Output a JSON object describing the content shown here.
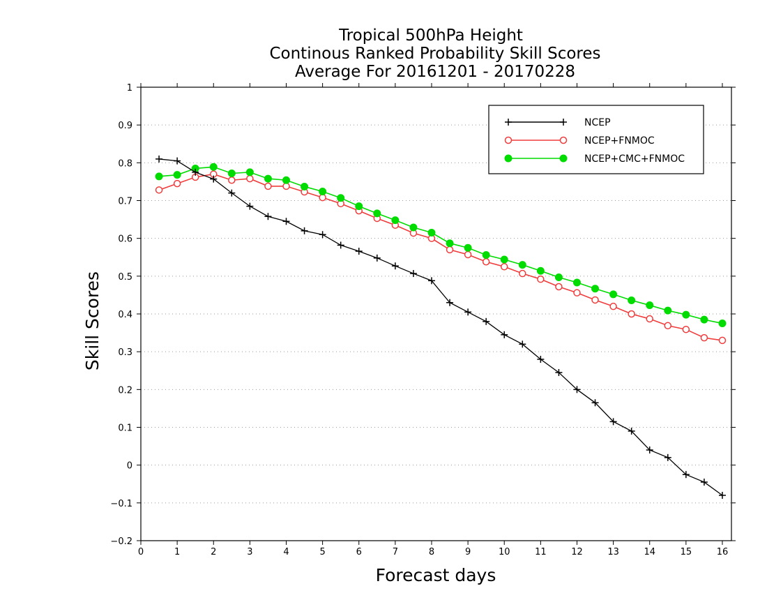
{
  "chart_data": {
    "type": "line",
    "title": [
      "Tropical 500hPa Height",
      "Continous Ranked Probability Skill Scores",
      "Average For 20161201 - 20170228"
    ],
    "xlabel": "Forecast days",
    "ylabel": "Skill Scores",
    "xlim": [
      0,
      16.25
    ],
    "ylim": [
      -0.2,
      1
    ],
    "xticks": [
      0,
      1,
      2,
      3,
      4,
      5,
      6,
      7,
      8,
      9,
      10,
      11,
      12,
      13,
      14,
      15,
      16
    ],
    "yticks": [
      -0.2,
      -0.1,
      0,
      0.1,
      0.2,
      0.3,
      0.4,
      0.5,
      0.6,
      0.7,
      0.8,
      0.9,
      1
    ],
    "ytick_labels": [
      "−0.2",
      "−0.1",
      "0",
      "0.1",
      "0.2",
      "0.3",
      "0.4",
      "0.5",
      "0.6",
      "0.7",
      "0.8",
      "0.9",
      "1"
    ],
    "grid": "horizontal dotted",
    "legend_position": "top-right",
    "x": [
      0.5,
      1,
      1.5,
      2,
      2.5,
      3,
      3.5,
      4,
      4.5,
      5,
      5.5,
      6,
      6.5,
      7,
      7.5,
      8,
      8.5,
      9,
      9.5,
      10,
      10.5,
      11,
      11.5,
      12,
      12.5,
      13,
      13.5,
      14,
      14.5,
      15,
      15.5,
      16
    ],
    "series": [
      {
        "name": "NCEP",
        "color": "#000000",
        "marker": "plus",
        "values": [
          0.81,
          0.805,
          0.775,
          0.757,
          0.72,
          0.685,
          0.658,
          0.645,
          0.62,
          0.61,
          0.582,
          0.566,
          0.548,
          0.527,
          0.507,
          0.488,
          0.43,
          0.405,
          0.38,
          0.345,
          0.32,
          0.28,
          0.245,
          0.2,
          0.165,
          0.115,
          0.09,
          0.04,
          0.02,
          -0.025,
          -0.045,
          -0.08
        ]
      },
      {
        "name": "NCEP+FNMOC",
        "color": "#f03c3c",
        "marker": "open-circle",
        "values": [
          0.728,
          0.745,
          0.762,
          0.77,
          0.754,
          0.758,
          0.738,
          0.738,
          0.723,
          0.708,
          0.692,
          0.673,
          0.653,
          0.635,
          0.614,
          0.6,
          0.57,
          0.557,
          0.538,
          0.525,
          0.507,
          0.492,
          0.472,
          0.456,
          0.437,
          0.42,
          0.4,
          0.387,
          0.369,
          0.359,
          0.337,
          0.33
        ]
      },
      {
        "name": "NCEP+CMC+FNMOC",
        "color": "#00dc00",
        "marker": "filled-circle",
        "values": [
          0.764,
          0.768,
          0.785,
          0.789,
          0.772,
          0.775,
          0.758,
          0.754,
          0.737,
          0.724,
          0.707,
          0.685,
          0.666,
          0.648,
          0.629,
          0.615,
          0.587,
          0.575,
          0.556,
          0.544,
          0.53,
          0.514,
          0.497,
          0.483,
          0.467,
          0.452,
          0.436,
          0.423,
          0.409,
          0.398,
          0.385,
          0.375
        ]
      }
    ]
  }
}
